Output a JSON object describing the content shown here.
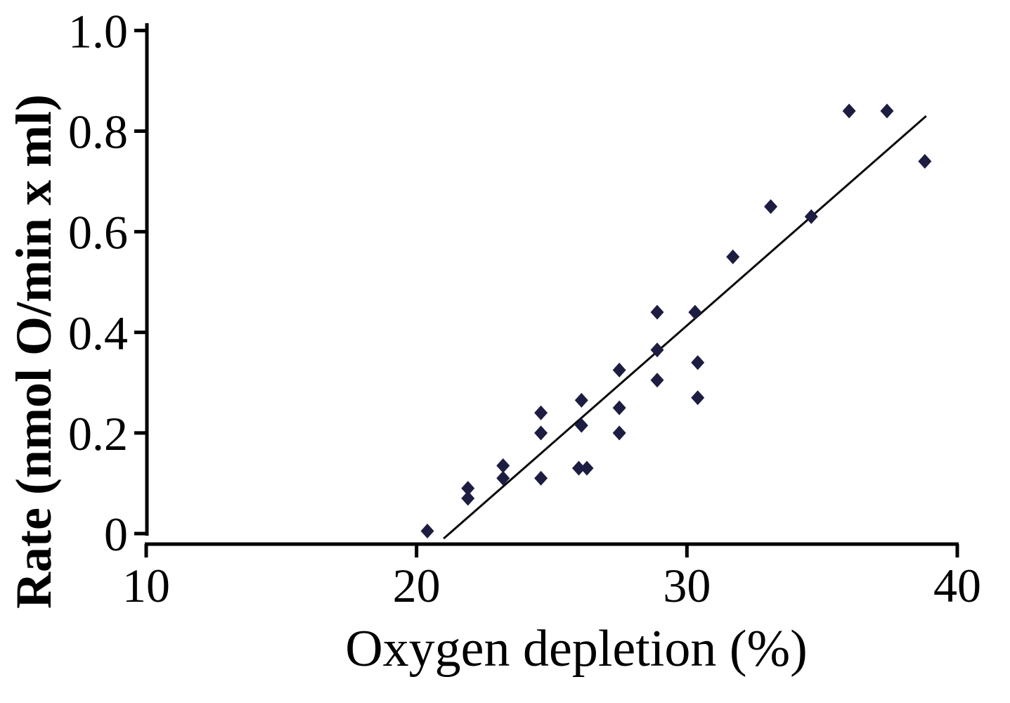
{
  "figure": {
    "background": "#ffffff"
  },
  "chart_data": {
    "type": "scatter",
    "title": "",
    "xlabel": "Oxygen depletion (%)",
    "ylabel": "Rate (nmol O/min x ml)",
    "xlim": [
      10,
      40
    ],
    "ylim": [
      0,
      1.0
    ],
    "grid": false,
    "legend": null,
    "axis_color": "#000000",
    "xticks": [
      {
        "v": 10,
        "label": "10"
      },
      {
        "v": 20,
        "label": "20"
      },
      {
        "v": 30,
        "label": "30"
      },
      {
        "v": 40,
        "label": "40"
      }
    ],
    "yticks": [
      {
        "v": 0,
        "label": "0"
      },
      {
        "v": 0.2,
        "label": "0.2"
      },
      {
        "v": 0.4,
        "label": "0.4"
      },
      {
        "v": 0.6,
        "label": "0.6"
      },
      {
        "v": 0.8,
        "label": "0.8"
      },
      {
        "v": 1.0,
        "label": "1.0"
      }
    ],
    "marker": {
      "shape": "diamond",
      "color": "#1d1d42"
    },
    "trendline": {
      "x1": 21.0,
      "y1": -0.01,
      "x2": 38.85,
      "y2": 0.83,
      "color": "#0a0a0a"
    },
    "points": [
      {
        "x": 20.4,
        "y": 0.005
      },
      {
        "x": 21.9,
        "y": 0.09
      },
      {
        "x": 21.9,
        "y": 0.07
      },
      {
        "x": 23.2,
        "y": 0.135
      },
      {
        "x": 23.2,
        "y": 0.11
      },
      {
        "x": 24.6,
        "y": 0.24
      },
      {
        "x": 24.6,
        "y": 0.2
      },
      {
        "x": 24.6,
        "y": 0.11
      },
      {
        "x": 26.1,
        "y": 0.265
      },
      {
        "x": 26.1,
        "y": 0.215
      },
      {
        "x": 26.0,
        "y": 0.13
      },
      {
        "x": 26.3,
        "y": 0.13
      },
      {
        "x": 27.5,
        "y": 0.325
      },
      {
        "x": 27.5,
        "y": 0.25
      },
      {
        "x": 27.5,
        "y": 0.2
      },
      {
        "x": 28.9,
        "y": 0.44
      },
      {
        "x": 28.9,
        "y": 0.365
      },
      {
        "x": 28.9,
        "y": 0.305
      },
      {
        "x": 30.3,
        "y": 0.44
      },
      {
        "x": 30.4,
        "y": 0.34
      },
      {
        "x": 30.4,
        "y": 0.27
      },
      {
        "x": 31.7,
        "y": 0.55
      },
      {
        "x": 33.1,
        "y": 0.65
      },
      {
        "x": 34.6,
        "y": 0.63
      },
      {
        "x": 36.0,
        "y": 0.84
      },
      {
        "x": 37.4,
        "y": 0.84
      },
      {
        "x": 38.8,
        "y": 0.74
      }
    ]
  }
}
